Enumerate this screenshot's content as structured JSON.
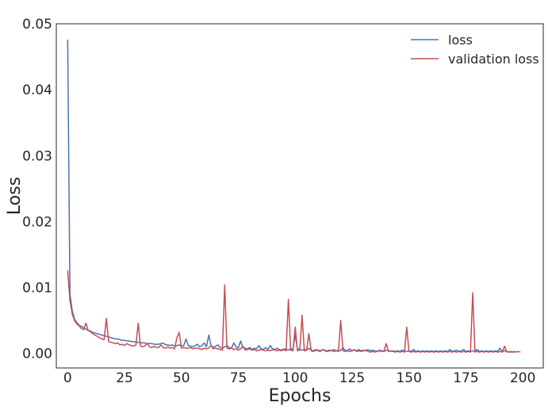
{
  "chart_data": {
    "type": "line",
    "title": "",
    "xlabel": "Epochs",
    "ylabel": "Loss",
    "xlim": [
      -5,
      209
    ],
    "ylim": [
      -0.0022,
      0.05
    ],
    "x_ticks": [
      0,
      25,
      50,
      75,
      100,
      125,
      150,
      175,
      200
    ],
    "x_tick_labels": [
      "0",
      "25",
      "50",
      "75",
      "100",
      "125",
      "150",
      "175",
      "200"
    ],
    "y_ticks": [
      0.0,
      0.01,
      0.02,
      0.03,
      0.04,
      0.05
    ],
    "y_tick_labels": [
      "0.00",
      "0.01",
      "0.02",
      "0.03",
      "0.04",
      "0.05"
    ],
    "grid": false,
    "legend_position": "top-right",
    "series": [
      {
        "name": "loss",
        "color": "#4c72b0",
        "values": [
          0.0476,
          0.009,
          0.0065,
          0.0052,
          0.0047,
          0.0043,
          0.0041,
          0.0039,
          0.0037,
          0.0035,
          0.0034,
          0.0032,
          0.0031,
          0.003,
          0.0029,
          0.0028,
          0.0027,
          0.0026,
          0.0025,
          0.0024,
          0.0023,
          0.0022,
          0.0022,
          0.0021,
          0.002,
          0.002,
          0.0019,
          0.0019,
          0.0018,
          0.0018,
          0.0017,
          0.0017,
          0.0016,
          0.0016,
          0.0016,
          0.0015,
          0.0015,
          0.0015,
          0.0014,
          0.0014,
          0.0014,
          0.0015,
          0.0016,
          0.0013,
          0.0013,
          0.0012,
          0.0013,
          0.0011,
          0.0012,
          0.0013,
          0.0011,
          0.0012,
          0.0022,
          0.0012,
          0.0011,
          0.001,
          0.0012,
          0.0014,
          0.001,
          0.0012,
          0.0016,
          0.001,
          0.0028,
          0.0012,
          0.0009,
          0.0011,
          0.0013,
          0.0009,
          0.0008,
          0.001,
          0.0012,
          0.0009,
          0.0008,
          0.0016,
          0.001,
          0.0008,
          0.0019,
          0.0009,
          0.0008,
          0.0007,
          0.0009,
          0.0006,
          0.0008,
          0.0007,
          0.0012,
          0.0007,
          0.0006,
          0.0009,
          0.0006,
          0.0012,
          0.0007,
          0.0006,
          0.0008,
          0.0006,
          0.0005,
          0.0007,
          0.0006,
          0.0005,
          0.0007,
          0.0006,
          0.0028,
          0.0007,
          0.0006,
          0.0005,
          0.0006,
          0.0005,
          0.0008,
          0.0005,
          0.0004,
          0.0006,
          0.0005,
          0.0004,
          0.0006,
          0.0005,
          0.0004,
          0.0005,
          0.0004,
          0.0006,
          0.0004,
          0.0005,
          0.0004,
          0.0009,
          0.0004,
          0.0005,
          0.0007,
          0.0004,
          0.0005,
          0.0004,
          0.0006,
          0.0004,
          0.0005,
          0.0004,
          0.0006,
          0.0004,
          0.0005,
          0.0004,
          0.0003,
          0.0005,
          0.0004,
          0.0003,
          0.0005,
          0.0004,
          0.0003,
          0.0004,
          0.0003,
          0.0004,
          0.0003,
          0.0005,
          0.0004,
          0.0003,
          0.0004,
          0.0003,
          0.0006,
          0.0003,
          0.0004,
          0.0003,
          0.0004,
          0.0003,
          0.0004,
          0.0003,
          0.0004,
          0.0003,
          0.0004,
          0.0003,
          0.0004,
          0.0003,
          0.0004,
          0.0003,
          0.0006,
          0.0003,
          0.0004,
          0.0005,
          0.0003,
          0.0004,
          0.0006,
          0.0003,
          0.0004,
          0.0003,
          0.0004,
          0.0003,
          0.0006,
          0.0003,
          0.0004,
          0.0003,
          0.0004,
          0.0003,
          0.0004,
          0.0003,
          0.0004,
          0.0003,
          0.0008,
          0.0003,
          0.0004,
          0.0003,
          0.0002,
          0.0003,
          0.0002,
          0.0003
        ]
      },
      {
        "name": "validation loss",
        "color": "#c44e52",
        "values": [
          0.0126,
          0.008,
          0.006,
          0.005,
          0.0045,
          0.0042,
          0.0038,
          0.0036,
          0.0046,
          0.0035,
          0.0033,
          0.003,
          0.0028,
          0.0026,
          0.0024,
          0.0022,
          0.0021,
          0.0053,
          0.0018,
          0.0017,
          0.0016,
          0.0015,
          0.0016,
          0.0013,
          0.0014,
          0.0012,
          0.0015,
          0.0013,
          0.0012,
          0.0011,
          0.0013,
          0.0046,
          0.0011,
          0.001,
          0.0012,
          0.0015,
          0.001,
          0.0009,
          0.0011,
          0.0009,
          0.0009,
          0.0013,
          0.0009,
          0.0008,
          0.001,
          0.0008,
          0.0009,
          0.0007,
          0.0024,
          0.0032,
          0.0008,
          0.0009,
          0.0008,
          0.0008,
          0.0009,
          0.0007,
          0.0008,
          0.0008,
          0.0007,
          0.0006,
          0.0008,
          0.0007,
          0.0008,
          0.0012,
          0.0007,
          0.0008,
          0.0007,
          0.0006,
          0.0005,
          0.0104,
          0.0008,
          0.0007,
          0.0008,
          0.0006,
          0.0007,
          0.0005,
          0.0007,
          0.0011,
          0.0005,
          0.0006,
          0.0007,
          0.0005,
          0.0006,
          0.0004,
          0.0005,
          0.0006,
          0.0005,
          0.0004,
          0.0005,
          0.0004,
          0.0006,
          0.0005,
          0.0004,
          0.0005,
          0.0004,
          0.0006,
          0.0004,
          0.0082,
          0.0005,
          0.0004,
          0.004,
          0.0004,
          0.0005,
          0.0058,
          0.0004,
          0.0005,
          0.003,
          0.0004,
          0.0003,
          0.0005,
          0.0004,
          0.0003,
          0.0006,
          0.0004,
          0.0003,
          0.0004,
          0.0005,
          0.0003,
          0.0004,
          0.0003,
          0.005,
          0.0004,
          0.0003,
          0.0004,
          0.0003,
          0.0004,
          0.0006,
          0.0003,
          0.0004,
          0.0003,
          0.0004,
          0.0005,
          0.0003,
          0.0002,
          0.0003,
          0.0002,
          0.0003,
          0.0004,
          0.0003,
          0.0004,
          0.0015,
          0.0003,
          0.0004,
          0.0003,
          0.0002,
          0.0003,
          0.0002,
          0.0003,
          0.0002,
          0.004,
          0.0003,
          0.0002,
          0.0003,
          0.0002,
          0.0003,
          0.0002,
          0.0003,
          0.0002,
          0.0003,
          0.0002,
          0.0003,
          0.0002,
          0.0003,
          0.0002,
          0.0003,
          0.0002,
          0.0003,
          0.0002,
          0.0003,
          0.0002,
          0.0003,
          0.0002,
          0.0003,
          0.0002,
          0.0003,
          0.0002,
          0.0003,
          0.0002,
          0.0092,
          0.0002,
          0.0003,
          0.0002,
          0.0003,
          0.0002,
          0.0003,
          0.0002,
          0.0003,
          0.0002,
          0.0003,
          0.0002,
          0.0003,
          0.0002,
          0.0011,
          0.0002,
          0.0003,
          0.0002,
          0.0003,
          0.0002,
          0.0003,
          0.0002
        ]
      }
    ]
  }
}
